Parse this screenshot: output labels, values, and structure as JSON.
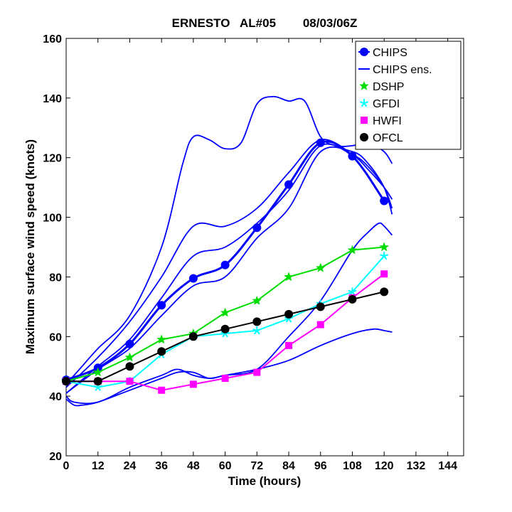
{
  "chart_data": {
    "type": "line",
    "title": "ERNESTO   AL#05        08/03/06Z",
    "xlabel": "Time (hours)",
    "ylabel": "Maximum surface wind speed (knots)",
    "xlim": [
      0,
      150
    ],
    "ylim": [
      20,
      160
    ],
    "xticks": [
      0,
      12,
      24,
      36,
      48,
      60,
      72,
      84,
      96,
      108,
      120,
      132,
      144
    ],
    "yticks": [
      20,
      40,
      60,
      80,
      100,
      120,
      140,
      160
    ],
    "grid": false,
    "legend_position": "top-right",
    "series": [
      {
        "name": "CHIPS",
        "color": "#0000ff",
        "marker": "circle",
        "line_width": 3,
        "x": [
          0,
          12,
          24,
          36,
          48,
          60,
          72,
          84,
          96,
          108,
          120
        ],
        "y": [
          45.5,
          49.5,
          57.5,
          70.5,
          79.5,
          84,
          96.5,
          111,
          125,
          120.5,
          105.5
        ]
      },
      {
        "name": "DSHP",
        "color": "#00dd00",
        "marker": "star",
        "line_width": 2,
        "x": [
          0,
          12,
          24,
          36,
          48,
          60,
          72,
          84,
          96,
          108,
          120
        ],
        "y": [
          45,
          48,
          53,
          59,
          61,
          68,
          72,
          80,
          83,
          89,
          90
        ]
      },
      {
        "name": "GFDI",
        "color": "#00ffff",
        "marker": "asterisk",
        "line_width": 2,
        "x": [
          0,
          12,
          24,
          36,
          48,
          60,
          72,
          84,
          96,
          108,
          120
        ],
        "y": [
          45,
          43,
          45,
          54,
          60,
          61,
          62,
          66,
          71,
          75,
          87
        ]
      },
      {
        "name": "HWFI",
        "color": "#ff00ff",
        "marker": "square",
        "line_width": 2,
        "x": [
          0,
          12,
          24,
          36,
          48,
          60,
          72,
          84,
          96,
          108,
          120
        ],
        "y": [
          45,
          45,
          45,
          42,
          44,
          46,
          48,
          57,
          64,
          73,
          81
        ]
      },
      {
        "name": "OFCL",
        "color": "#000000",
        "marker": "circle",
        "line_width": 2,
        "x": [
          0,
          12,
          24,
          36,
          48,
          60,
          72,
          84,
          96,
          108,
          120
        ],
        "y": [
          45,
          45,
          50,
          55,
          60,
          62.5,
          65,
          67.5,
          70,
          72.5,
          75
        ]
      }
    ],
    "ensemble": {
      "name": "CHIPS ens.",
      "color": "#0000ff",
      "members": [
        {
          "x": [
            0,
            6,
            12,
            24,
            36,
            44,
            48,
            54,
            60,
            66,
            72,
            78,
            84,
            90,
            96,
            102,
            108,
            114,
            120,
            123
          ],
          "y": [
            44,
            50,
            56,
            67,
            90,
            118,
            127,
            126,
            123,
            125,
            138,
            140.5,
            139,
            139,
            127,
            124,
            124,
            125,
            122,
            118
          ]
        },
        {
          "x": [
            0,
            12,
            24,
            36,
            48,
            60,
            72,
            84,
            96,
            108,
            114,
            120,
            123
          ],
          "y": [
            43,
            53,
            65,
            80,
            97,
            97,
            103,
            115,
            126,
            121,
            116,
            110,
            106
          ]
        },
        {
          "x": [
            0,
            12,
            24,
            36,
            48,
            60,
            72,
            84,
            96,
            108,
            114,
            120,
            123
          ],
          "y": [
            41,
            50,
            59,
            73,
            87,
            90,
            98,
            109,
            124,
            121,
            117,
            110,
            103
          ]
        },
        {
          "x": [
            0,
            12,
            24,
            36,
            48,
            60,
            72,
            84,
            96,
            108,
            114,
            120,
            123
          ],
          "y": [
            41,
            49,
            56,
            67,
            77,
            80,
            93,
            103,
            122,
            122,
            118,
            110,
            101
          ]
        },
        {
          "x": [
            0,
            3,
            12,
            24,
            36,
            42,
            48,
            54,
            60,
            72,
            84,
            96,
            108,
            114,
            118,
            120,
            123
          ],
          "y": [
            40,
            38,
            38,
            43,
            47,
            49,
            47,
            46,
            47,
            49,
            60,
            72,
            89,
            95,
            98,
            97,
            94
          ]
        },
        {
          "x": [
            0,
            3,
            6,
            12,
            24,
            36,
            42,
            48,
            54,
            60,
            72,
            84,
            96,
            108,
            116,
            120,
            123
          ],
          "y": [
            39,
            37,
            37,
            38,
            42,
            46,
            48,
            48,
            46,
            47,
            49,
            52,
            57,
            61,
            62.5,
            62,
            61.5
          ]
        }
      ]
    },
    "legend": [
      {
        "label": "CHIPS",
        "symbol": "circle-line",
        "color": "#0000ff"
      },
      {
        "label": "CHIPS ens.",
        "symbol": "line",
        "color": "#0000ff"
      },
      {
        "label": "DSHP",
        "symbol": "star",
        "color": "#00dd00"
      },
      {
        "label": "GFDI",
        "symbol": "asterisk",
        "color": "#00ffff"
      },
      {
        "label": "HWFI",
        "symbol": "square",
        "color": "#ff00ff"
      },
      {
        "label": "OFCL",
        "symbol": "circle",
        "color": "#000000"
      }
    ]
  }
}
